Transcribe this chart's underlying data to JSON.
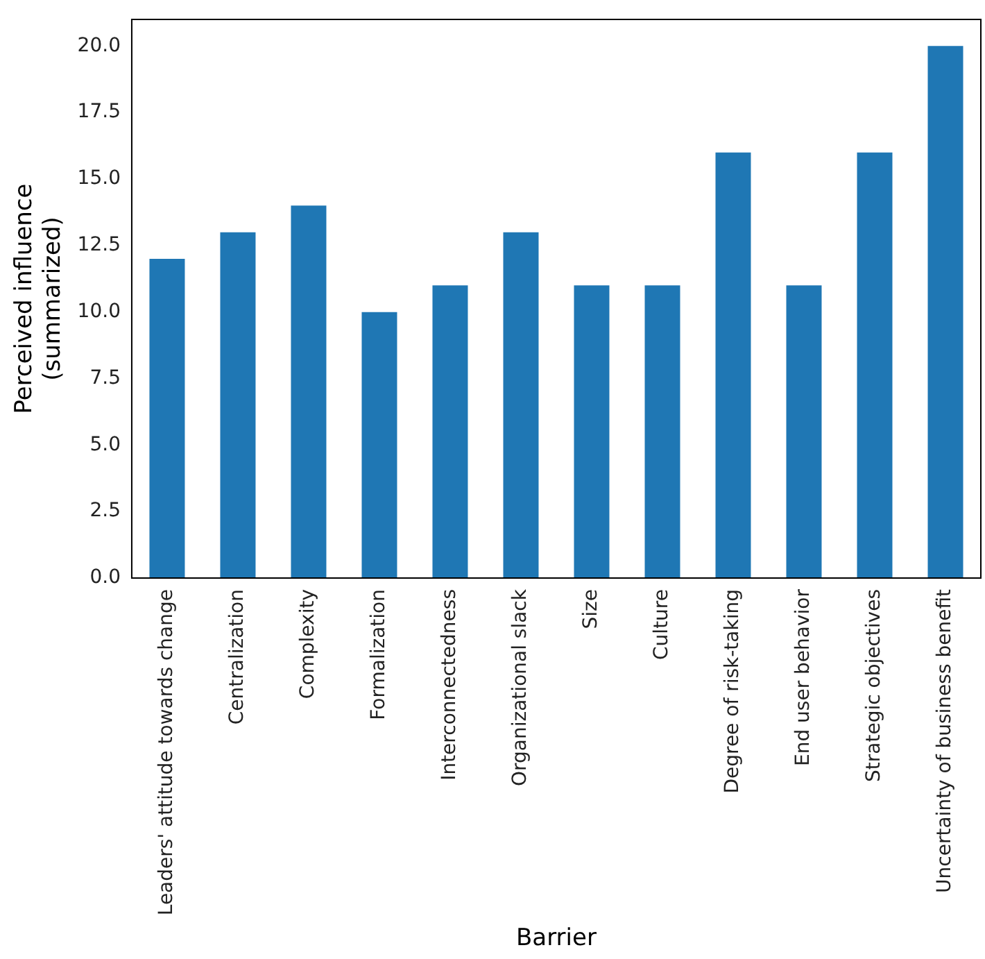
{
  "chart_data": {
    "type": "bar",
    "xlabel": "Barrier",
    "ylabel": "Perceived influence\n(summarized)",
    "categories": [
      "Leaders' attitude towards change",
      "Centralization",
      "Complexity",
      "Formalization",
      "Interconnectedness",
      "Organizational slack",
      "Size",
      "Culture",
      "Degree of risk-taking",
      "End user behavior",
      "Strategic objectives",
      "Uncertainty of business benefit"
    ],
    "values": [
      12,
      13,
      14,
      10,
      11,
      13,
      11,
      11,
      16,
      11,
      16,
      20
    ],
    "color": "#1f77b4",
    "ylim": [
      0,
      21
    ],
    "yticks": [
      {
        "value": 0,
        "label": "0.0"
      },
      {
        "value": 2.5,
        "label": "2.5"
      },
      {
        "value": 5,
        "label": "5.0"
      },
      {
        "value": 7.5,
        "label": "7.5"
      },
      {
        "value": 10,
        "label": "10.0"
      },
      {
        "value": 12.5,
        "label": "12.5"
      },
      {
        "value": 15,
        "label": "15.0"
      },
      {
        "value": 17.5,
        "label": "17.5"
      },
      {
        "value": 20,
        "label": "20.0"
      }
    ],
    "grid": false,
    "legend": false
  }
}
